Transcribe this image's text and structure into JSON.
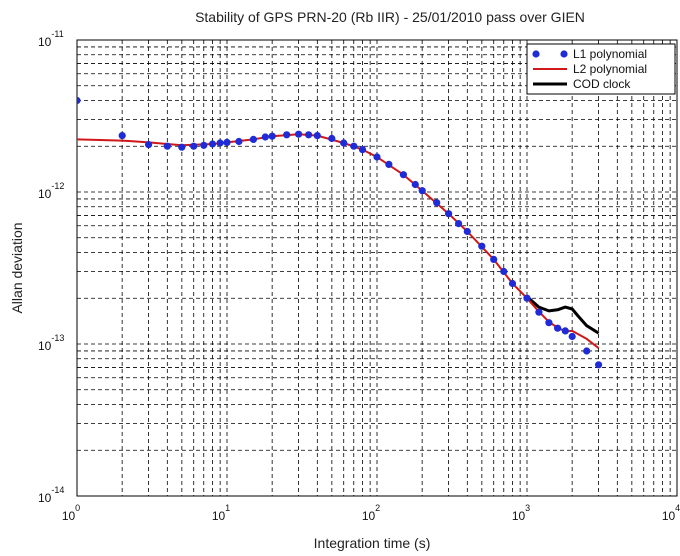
{
  "chart_data": {
    "type": "line",
    "title": "Stability of GPS PRN-20 (Rb IIR) - 25/01/2010 pass over GIEN",
    "xlabel": "Integration time  (s)",
    "ylabel": "Allan deviation",
    "xscale": "log",
    "yscale": "log",
    "xlim": [
      1,
      10000
    ],
    "ylim": [
      1e-14,
      1e-11
    ],
    "grid": true,
    "legend_position": "top-right",
    "x_ticks": [
      {
        "base": "10",
        "exp": "0",
        "value": 1
      },
      {
        "base": "10",
        "exp": "1",
        "value": 10
      },
      {
        "base": "10",
        "exp": "2",
        "value": 100
      },
      {
        "base": "10",
        "exp": "3",
        "value": 1000
      },
      {
        "base": "10",
        "exp": "4",
        "value": 10000
      }
    ],
    "y_ticks": [
      {
        "base": "10",
        "exp": "-11",
        "value": 1e-11
      },
      {
        "base": "10",
        "exp": "-12",
        "value": 1e-12
      },
      {
        "base": "10",
        "exp": "-13",
        "value": 1e-13
      },
      {
        "base": "10",
        "exp": "-14",
        "value": 1e-14
      }
    ],
    "series": [
      {
        "name": "L1 polynomial",
        "style": "markers",
        "color": "#1f2bd6",
        "x": [
          1,
          2,
          3,
          4,
          5,
          6,
          7,
          8,
          9,
          10,
          12,
          15,
          18,
          20,
          25,
          30,
          35,
          40,
          50,
          60,
          70,
          80,
          100,
          120,
          150,
          180,
          200,
          250,
          300,
          350,
          400,
          500,
          600,
          700,
          800,
          1000,
          1200,
          1400,
          1600,
          1800,
          2000,
          2500,
          3000
        ],
        "y": [
          4e-12,
          2.35e-12,
          2.05e-12,
          2e-12,
          1.97e-12,
          2e-12,
          2.03e-12,
          2.07e-12,
          2.1e-12,
          2.12e-12,
          2.15e-12,
          2.22e-12,
          2.3e-12,
          2.33e-12,
          2.38e-12,
          2.4e-12,
          2.38e-12,
          2.35e-12,
          2.25e-12,
          2.1e-12,
          2e-12,
          1.9e-12,
          1.7e-12,
          1.52e-12,
          1.3e-12,
          1.12e-12,
          1.02e-12,
          8.5e-13,
          7.2e-13,
          6.2e-13,
          5.5e-13,
          4.4e-13,
          3.6e-13,
          3e-13,
          2.5e-13,
          2e-13,
          1.62e-13,
          1.38e-13,
          1.27e-13,
          1.22e-13,
          1.12e-13,
          9e-14,
          7.3e-14
        ]
      },
      {
        "name": "L2 polynomial",
        "style": "line",
        "color": "#d01818",
        "x": [
          1,
          2,
          3,
          5,
          8,
          10,
          15,
          20,
          30,
          40,
          60,
          80,
          100,
          150,
          200,
          300,
          400,
          600,
          800,
          1000,
          1200,
          1400,
          1600,
          1800,
          2000,
          2500,
          3000
        ],
        "y": [
          2.22e-12,
          2.18e-12,
          2.12e-12,
          2.03e-12,
          2.07e-12,
          2.12e-12,
          2.22e-12,
          2.33e-12,
          2.4e-12,
          2.35e-12,
          2.1e-12,
          1.9e-12,
          1.7e-12,
          1.3e-12,
          1.02e-12,
          7.2e-13,
          5.5e-13,
          3.6e-13,
          2.5e-13,
          2e-13,
          1.63e-13,
          1.4e-13,
          1.28e-13,
          1.21e-13,
          1.22e-13,
          1.08e-13,
          9.4e-14
        ]
      },
      {
        "name": "COD clock",
        "style": "line",
        "color": "#000000",
        "x": [
          1000,
          1200,
          1400,
          1600,
          1800,
          2000,
          2200,
          2500,
          3000
        ],
        "y": [
          2.05e-13,
          1.75e-13,
          1.65e-13,
          1.68e-13,
          1.75e-13,
          1.7e-13,
          1.52e-13,
          1.32e-13,
          1.18e-13
        ]
      }
    ]
  }
}
